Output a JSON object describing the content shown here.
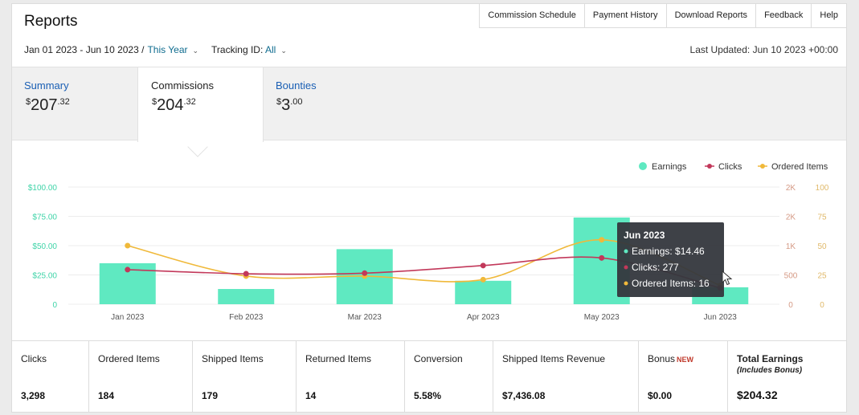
{
  "header": {
    "title": "Reports"
  },
  "topnav": [
    {
      "label": "Commission Schedule"
    },
    {
      "label": "Payment History"
    },
    {
      "label": "Download Reports"
    },
    {
      "label": "Feedback"
    },
    {
      "label": "Help"
    }
  ],
  "filters": {
    "date_range": "Jan 01 2023 - Jun 10 2023 /",
    "period": "This Year",
    "tracking_label": "Tracking ID:",
    "tracking_value": "All",
    "last_updated": "Last Updated: Jun 10 2023 +00:00"
  },
  "tabs": [
    {
      "label": "Summary",
      "amount_main": "207",
      "amount_cents": ".32",
      "currency": "$"
    },
    {
      "label": "Commissions",
      "amount_main": "204",
      "amount_cents": ".32",
      "currency": "$"
    },
    {
      "label": "Bounties",
      "amount_main": "3",
      "amount_cents": ".00",
      "currency": "$"
    }
  ],
  "chart_data": {
    "type": "bar",
    "categories": [
      "Jan 2023",
      "Feb 2023",
      "Mar 2023",
      "Apr 2023",
      "May 2023",
      "Jun 2023"
    ],
    "series": [
      {
        "name": "Earnings",
        "kind": "bar",
        "axis": "left",
        "color": "#5fe9c1",
        "values": [
          35,
          13,
          47,
          20,
          74,
          14.46
        ]
      },
      {
        "name": "Clicks",
        "kind": "line",
        "axis": "right1",
        "color": "#c2385a",
        "values": [
          590,
          520,
          530,
          660,
          790,
          277
        ]
      },
      {
        "name": "Ordered Items",
        "kind": "line",
        "axis": "right2",
        "color": "#f0b93a",
        "values": [
          50,
          24,
          24,
          21,
          55,
          16
        ]
      }
    ],
    "left_axis": {
      "min": 0,
      "max": 100,
      "ticks": [
        "0",
        "$25.00",
        "$50.00",
        "$75.00",
        "$100.00"
      ]
    },
    "right_axis_1": {
      "min": 0,
      "max": 2000,
      "ticks": [
        "0",
        "500",
        "1K",
        "2K",
        "2K"
      ]
    },
    "right_axis_2": {
      "min": 0,
      "max": 100,
      "ticks": [
        "0",
        "25",
        "50",
        "75",
        "100"
      ]
    },
    "legend_position": "top-right",
    "grid": true,
    "tooltip": {
      "title": "Jun 2023",
      "lines": [
        "Earnings: $14.46",
        "Clicks: 277",
        "Ordered Items: 16"
      ]
    }
  },
  "stats": [
    {
      "label": "Clicks",
      "value": "3,298"
    },
    {
      "label": "Ordered Items",
      "value": "184"
    },
    {
      "label": "Shipped Items",
      "value": "179"
    },
    {
      "label": "Returned Items",
      "value": "14"
    },
    {
      "label": "Conversion",
      "value": "5.58%"
    },
    {
      "label": "Shipped Items Revenue",
      "value": "$7,436.08"
    },
    {
      "label": "Bonus",
      "badge": "NEW",
      "value": "$0.00"
    },
    {
      "label": "Total Earnings",
      "sublabel": "(Includes Bonus)",
      "value": "$204.32"
    }
  ],
  "icons": {
    "cursor": "mouse-pointer-icon",
    "dropdown": "chevron-down-icon"
  }
}
